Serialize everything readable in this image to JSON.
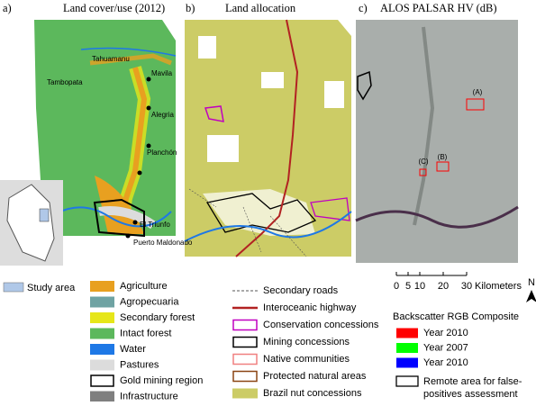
{
  "panel_a": {
    "label": "a)",
    "title": "Land cover/use (2012)",
    "places": [
      "Tahuamanu",
      "Tambopata",
      "Mavila",
      "Alegria",
      "Planchón",
      "El Triunfo",
      "Puerto Maldonado"
    ]
  },
  "panel_b": {
    "label": "b)",
    "title": "Land allocation"
  },
  "panel_c": {
    "label": "c)",
    "title": "ALOS PALSAR HV (dB)",
    "sites": [
      "(A)",
      "(B)",
      "(C)"
    ]
  },
  "legend_a": {
    "inset": "Study area",
    "items": [
      {
        "label": "Agriculture",
        "color": "#e8a020",
        "symbol": "fill"
      },
      {
        "label": "Agropecuaria",
        "color": "#6fa3a3",
        "symbol": "fill"
      },
      {
        "label": "Secondary forest",
        "color": "#e6e619",
        "symbol": "fill"
      },
      {
        "label": "Intact forest",
        "color": "#5cb85c",
        "symbol": "fill"
      },
      {
        "label": "Water",
        "color": "#1e78e6",
        "symbol": "fill"
      },
      {
        "label": "Pastures",
        "color": "#dcdcdc",
        "symbol": "fill"
      },
      {
        "label": "Gold mining region",
        "color": "#000000",
        "symbol": "outline"
      },
      {
        "label": "Infrastructure",
        "color": "#7f7f7f",
        "symbol": "fill"
      }
    ]
  },
  "legend_b": {
    "items": [
      {
        "label": "Secondary roads",
        "color": "#555555",
        "symbol": "dash"
      },
      {
        "label": "Interoceanic highway",
        "color": "#b22222",
        "symbol": "line"
      },
      {
        "label": "Conservation concessions",
        "color": "#c000c0",
        "symbol": "outline"
      },
      {
        "label": "Mining concessions",
        "color": "#000000",
        "symbol": "outline"
      },
      {
        "label": "Native communities",
        "color": "#f08080",
        "symbol": "outline"
      },
      {
        "label": "Protected natural areas",
        "color": "#8b4513",
        "symbol": "outline"
      },
      {
        "label": "Brazil nut concessions",
        "color": "#cccc66",
        "symbol": "fill"
      }
    ]
  },
  "scale_bar": {
    "ticks": [
      0,
      5,
      10,
      20,
      30
    ],
    "unit": "Kilometers"
  },
  "north": "N",
  "legend_c": {
    "title": "Backscatter RGB Composite",
    "items": [
      {
        "label": "Year 2010",
        "color": "#ff0000",
        "symbol": "fill"
      },
      {
        "label": "Year 2007",
        "color": "#00ff00",
        "symbol": "fill"
      },
      {
        "label": "Year 2010",
        "color": "#0000ff",
        "symbol": "fill"
      }
    ],
    "remote": [
      "Remote area for false-",
      "positives assessment"
    ]
  }
}
